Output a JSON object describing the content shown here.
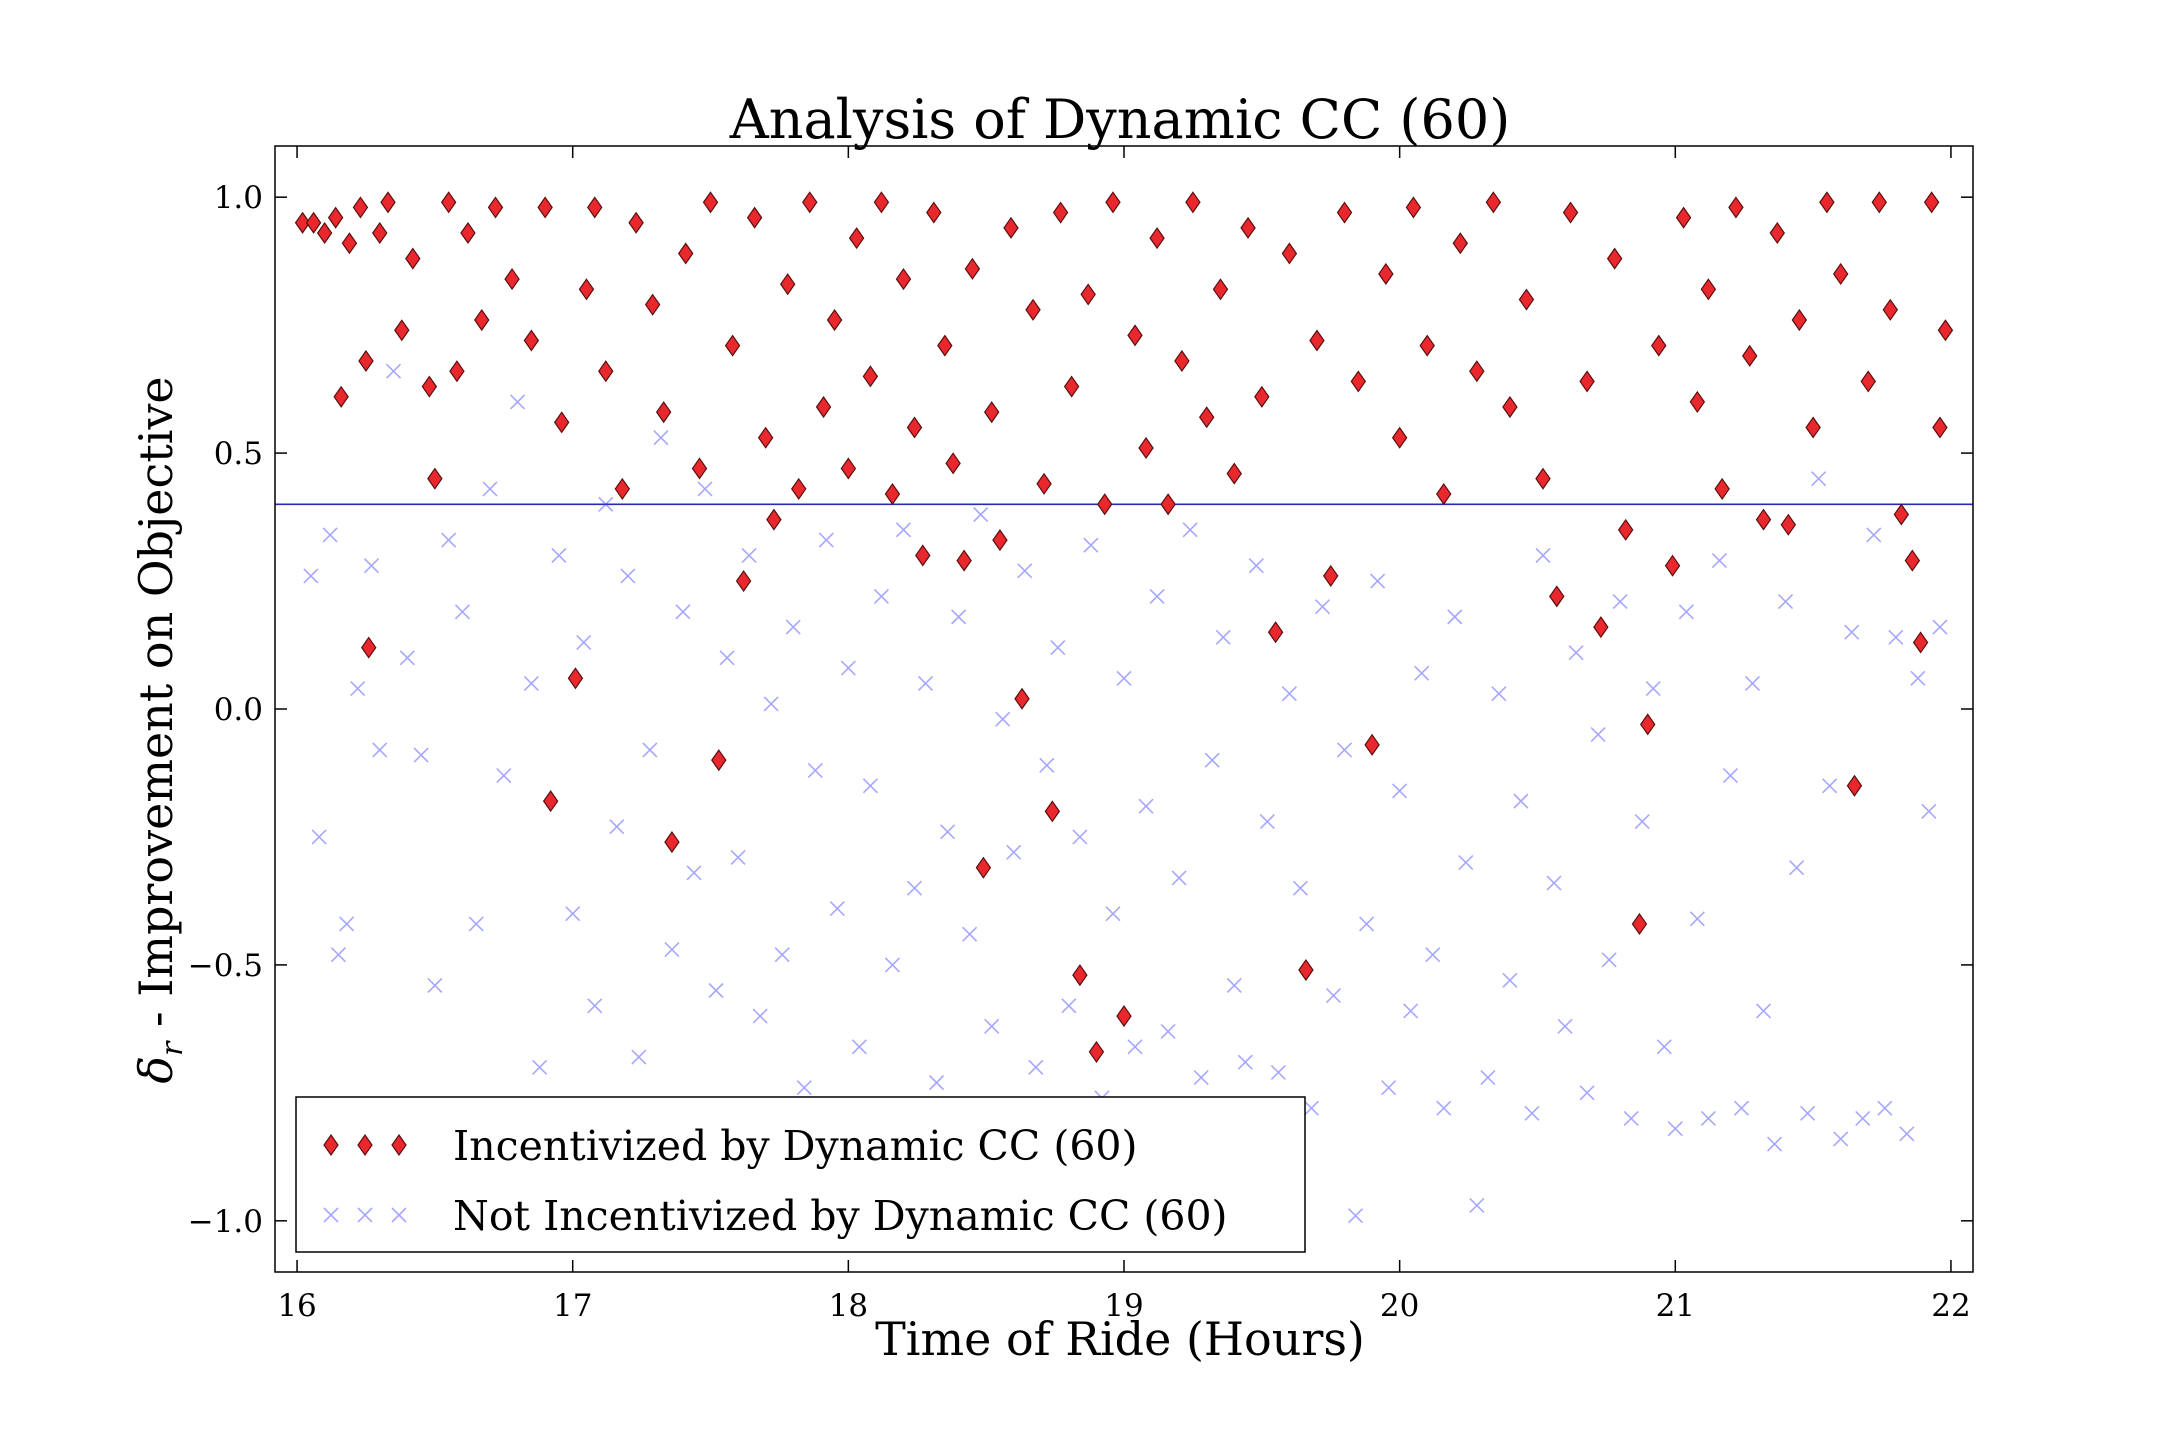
{
  "chart_data": {
    "type": "scatter",
    "title": "Analysis of Dynamic CC (60)",
    "xlabel": "Time of Ride (Hours)",
    "ylabel_symbol": "δ",
    "ylabel_subscript": "r",
    "ylabel_text": " - Improvement on Objective",
    "xlim": [
      15.92,
      22.08
    ],
    "ylim": [
      -1.1,
      1.1
    ],
    "x_ticks": [
      16,
      17,
      18,
      19,
      20,
      21,
      22
    ],
    "x_tick_labels": [
      "16",
      "17",
      "18",
      "19",
      "20",
      "21",
      "22"
    ],
    "y_ticks": [
      1.0,
      0.5,
      0.0,
      -0.5,
      -1.0
    ],
    "y_tick_labels": [
      "1.0",
      "0.5",
      "0.0",
      "−0.5",
      "−1.0"
    ],
    "threshold_line": {
      "y": 0.4,
      "color": "#2a2ab8"
    },
    "legend": {
      "position": "lower-left"
    },
    "series": [
      {
        "name": "Incentivized by Dynamic CC (60)",
        "marker": "diamond",
        "color": "#e8282d",
        "points": [
          [
            16.02,
            0.95
          ],
          [
            16.06,
            0.95
          ],
          [
            16.1,
            0.93
          ],
          [
            16.14,
            0.96
          ],
          [
            16.16,
            0.61
          ],
          [
            16.19,
            0.91
          ],
          [
            16.23,
            0.98
          ],
          [
            16.25,
            0.68
          ],
          [
            16.26,
            0.12
          ],
          [
            16.3,
            0.93
          ],
          [
            16.33,
            0.99
          ],
          [
            16.38,
            0.74
          ],
          [
            16.42,
            0.88
          ],
          [
            16.48,
            0.63
          ],
          [
            16.5,
            0.45
          ],
          [
            16.55,
            0.99
          ],
          [
            16.58,
            0.66
          ],
          [
            16.62,
            0.93
          ],
          [
            16.67,
            0.76
          ],
          [
            16.72,
            0.98
          ],
          [
            16.78,
            0.84
          ],
          [
            16.85,
            0.72
          ],
          [
            16.9,
            0.98
          ],
          [
            16.92,
            -0.18
          ],
          [
            16.96,
            0.56
          ],
          [
            17.01,
            0.06
          ],
          [
            17.05,
            0.82
          ],
          [
            17.08,
            0.98
          ],
          [
            17.12,
            0.66
          ],
          [
            17.18,
            0.43
          ],
          [
            17.23,
            0.95
          ],
          [
            17.29,
            0.79
          ],
          [
            17.33,
            0.58
          ],
          [
            17.36,
            -0.26
          ],
          [
            17.41,
            0.89
          ],
          [
            17.46,
            0.47
          ],
          [
            17.5,
            0.99
          ],
          [
            17.53,
            -0.1
          ],
          [
            17.58,
            0.71
          ],
          [
            17.62,
            0.25
          ],
          [
            17.66,
            0.96
          ],
          [
            17.7,
            0.53
          ],
          [
            17.73,
            0.37
          ],
          [
            17.78,
            0.83
          ],
          [
            17.82,
            0.43
          ],
          [
            17.86,
            0.99
          ],
          [
            17.91,
            0.59
          ],
          [
            17.95,
            0.76
          ],
          [
            18.0,
            0.47
          ],
          [
            18.03,
            0.92
          ],
          [
            18.08,
            0.65
          ],
          [
            18.12,
            0.99
          ],
          [
            18.16,
            0.42
          ],
          [
            18.2,
            0.84
          ],
          [
            18.24,
            0.55
          ],
          [
            18.27,
            0.3
          ],
          [
            18.31,
            0.97
          ],
          [
            18.35,
            0.71
          ],
          [
            18.38,
            0.48
          ],
          [
            18.42,
            0.29
          ],
          [
            18.45,
            0.86
          ],
          [
            18.49,
            -0.31
          ],
          [
            18.52,
            0.58
          ],
          [
            18.55,
            0.33
          ],
          [
            18.59,
            0.94
          ],
          [
            18.63,
            0.02
          ],
          [
            18.67,
            0.78
          ],
          [
            18.71,
            0.44
          ],
          [
            18.74,
            -0.2
          ],
          [
            18.77,
            0.97
          ],
          [
            18.81,
            0.63
          ],
          [
            18.84,
            -0.52
          ],
          [
            18.87,
            0.81
          ],
          [
            18.9,
            -0.67
          ],
          [
            18.93,
            0.4
          ],
          [
            18.96,
            0.99
          ],
          [
            19.0,
            -0.6
          ],
          [
            19.04,
            0.73
          ],
          [
            19.08,
            0.51
          ],
          [
            19.12,
            0.92
          ],
          [
            19.16,
            0.4
          ],
          [
            19.21,
            0.68
          ],
          [
            19.25,
            0.99
          ],
          [
            19.3,
            0.57
          ],
          [
            19.35,
            0.82
          ],
          [
            19.4,
            0.46
          ],
          [
            19.45,
            0.94
          ],
          [
            19.5,
            0.61
          ],
          [
            19.55,
            0.15
          ],
          [
            19.6,
            0.89
          ],
          [
            19.66,
            -0.51
          ],
          [
            19.7,
            0.72
          ],
          [
            19.75,
            0.26
          ],
          [
            19.8,
            0.97
          ],
          [
            19.85,
            0.64
          ],
          [
            19.9,
            -0.07
          ],
          [
            19.95,
            0.85
          ],
          [
            20.0,
            0.53
          ],
          [
            20.05,
            0.98
          ],
          [
            20.1,
            0.71
          ],
          [
            20.16,
            0.42
          ],
          [
            20.22,
            0.91
          ],
          [
            20.28,
            0.66
          ],
          [
            20.34,
            0.99
          ],
          [
            20.4,
            0.59
          ],
          [
            20.46,
            0.8
          ],
          [
            20.52,
            0.45
          ],
          [
            20.57,
            0.22
          ],
          [
            20.62,
            0.97
          ],
          [
            20.68,
            0.64
          ],
          [
            20.73,
            0.16
          ],
          [
            20.78,
            0.88
          ],
          [
            20.82,
            0.35
          ],
          [
            20.87,
            -0.42
          ],
          [
            20.9,
            -0.03
          ],
          [
            20.94,
            0.71
          ],
          [
            20.99,
            0.28
          ],
          [
            21.03,
            0.96
          ],
          [
            21.08,
            0.6
          ],
          [
            21.12,
            0.82
          ],
          [
            21.17,
            0.43
          ],
          [
            21.22,
            0.98
          ],
          [
            21.27,
            0.69
          ],
          [
            21.32,
            0.37
          ],
          [
            21.37,
            0.93
          ],
          [
            21.41,
            0.36
          ],
          [
            21.45,
            0.76
          ],
          [
            21.5,
            0.55
          ],
          [
            21.55,
            0.99
          ],
          [
            21.6,
            0.85
          ],
          [
            21.65,
            -0.15
          ],
          [
            21.7,
            0.64
          ],
          [
            21.74,
            0.99
          ],
          [
            21.78,
            0.78
          ],
          [
            21.82,
            0.38
          ],
          [
            21.86,
            0.29
          ],
          [
            21.89,
            0.13
          ],
          [
            21.93,
            0.99
          ],
          [
            21.96,
            0.55
          ],
          [
            21.98,
            0.74
          ]
        ]
      },
      {
        "name": "Not Incentivized by Dynamic CC (60)",
        "marker": "x",
        "color": "#3b3bff",
        "points": [
          [
            16.05,
            0.26
          ],
          [
            16.08,
            -0.25
          ],
          [
            16.12,
            0.34
          ],
          [
            16.15,
            -0.48
          ],
          [
            16.18,
            -0.42
          ],
          [
            16.22,
            0.04
          ],
          [
            16.27,
            0.28
          ],
          [
            16.3,
            -0.08
          ],
          [
            16.35,
            0.66
          ],
          [
            16.4,
            0.1
          ],
          [
            16.45,
            -0.09
          ],
          [
            16.5,
            -0.54
          ],
          [
            16.55,
            0.33
          ],
          [
            16.6,
            0.19
          ],
          [
            16.65,
            -0.42
          ],
          [
            16.7,
            0.43
          ],
          [
            16.75,
            -0.13
          ],
          [
            16.8,
            0.6
          ],
          [
            16.85,
            0.05
          ],
          [
            16.88,
            -0.7
          ],
          [
            16.95,
            0.3
          ],
          [
            17.0,
            -0.4
          ],
          [
            17.04,
            0.13
          ],
          [
            17.08,
            -0.58
          ],
          [
            17.12,
            0.4
          ],
          [
            17.16,
            -0.23
          ],
          [
            17.2,
            0.26
          ],
          [
            17.24,
            -0.68
          ],
          [
            17.28,
            -0.08
          ],
          [
            17.32,
            0.53
          ],
          [
            17.36,
            -0.47
          ],
          [
            17.4,
            0.19
          ],
          [
            17.44,
            -0.32
          ],
          [
            17.48,
            0.43
          ],
          [
            17.52,
            -0.55
          ],
          [
            17.56,
            0.1
          ],
          [
            17.6,
            -0.29
          ],
          [
            17.64,
            0.3
          ],
          [
            17.68,
            -0.6
          ],
          [
            17.72,
            0.01
          ],
          [
            17.76,
            -0.48
          ],
          [
            17.8,
            0.16
          ],
          [
            17.84,
            -0.74
          ],
          [
            17.88,
            -0.12
          ],
          [
            17.92,
            0.33
          ],
          [
            17.96,
            -0.39
          ],
          [
            18.0,
            0.08
          ],
          [
            18.04,
            -0.66
          ],
          [
            18.08,
            -0.15
          ],
          [
            18.12,
            0.22
          ],
          [
            18.16,
            -0.5
          ],
          [
            18.2,
            0.35
          ],
          [
            18.24,
            -0.35
          ],
          [
            18.28,
            0.05
          ],
          [
            18.32,
            -0.73
          ],
          [
            18.36,
            -0.24
          ],
          [
            18.4,
            0.18
          ],
          [
            18.44,
            -0.44
          ],
          [
            18.48,
            0.38
          ],
          [
            18.52,
            -0.62
          ],
          [
            18.56,
            -0.02
          ],
          [
            18.6,
            -0.28
          ],
          [
            18.64,
            0.27
          ],
          [
            18.68,
            -0.7
          ],
          [
            18.72,
            -0.11
          ],
          [
            18.76,
            0.12
          ],
          [
            18.8,
            -0.58
          ],
          [
            18.84,
            -0.25
          ],
          [
            18.88,
            0.32
          ],
          [
            18.92,
            -0.76
          ],
          [
            18.96,
            -0.4
          ],
          [
            19.0,
            0.06
          ],
          [
            19.04,
            -0.66
          ],
          [
            19.08,
            -0.19
          ],
          [
            19.12,
            0.22
          ],
          [
            19.16,
            -0.63
          ],
          [
            19.2,
            -0.33
          ],
          [
            19.24,
            0.35
          ],
          [
            19.28,
            -0.72
          ],
          [
            19.32,
            -0.1
          ],
          [
            19.36,
            0.14
          ],
          [
            19.4,
            -0.54
          ],
          [
            19.44,
            -0.69
          ],
          [
            19.48,
            0.28
          ],
          [
            19.52,
            -0.22
          ],
          [
            19.56,
            -0.71
          ],
          [
            19.6,
            0.03
          ],
          [
            19.64,
            -0.35
          ],
          [
            19.68,
            -0.78
          ],
          [
            19.72,
            0.2
          ],
          [
            19.76,
            -0.56
          ],
          [
            19.8,
            -0.08
          ],
          [
            19.84,
            -0.99
          ],
          [
            19.88,
            -0.42
          ],
          [
            19.92,
            0.25
          ],
          [
            19.96,
            -0.74
          ],
          [
            20.0,
            -0.16
          ],
          [
            20.04,
            -0.59
          ],
          [
            20.08,
            0.07
          ],
          [
            20.12,
            -0.48
          ],
          [
            20.16,
            -0.78
          ],
          [
            20.2,
            0.18
          ],
          [
            20.24,
            -0.3
          ],
          [
            20.28,
            -0.97
          ],
          [
            20.32,
            -0.72
          ],
          [
            20.36,
            0.03
          ],
          [
            20.4,
            -0.53
          ],
          [
            20.44,
            -0.18
          ],
          [
            20.48,
            -0.79
          ],
          [
            20.52,
            0.3
          ],
          [
            20.56,
            -0.34
          ],
          [
            20.6,
            -0.62
          ],
          [
            20.64,
            0.11
          ],
          [
            20.68,
            -0.75
          ],
          [
            20.72,
            -0.05
          ],
          [
            20.76,
            -0.49
          ],
          [
            20.8,
            0.21
          ],
          [
            20.84,
            -0.8
          ],
          [
            20.88,
            -0.22
          ],
          [
            20.92,
            0.04
          ],
          [
            20.96,
            -0.66
          ],
          [
            21.0,
            -0.82
          ],
          [
            21.04,
            0.19
          ],
          [
            21.08,
            -0.41
          ],
          [
            21.12,
            -0.8
          ],
          [
            21.16,
            0.29
          ],
          [
            21.2,
            -0.13
          ],
          [
            21.24,
            -0.78
          ],
          [
            21.28,
            0.05
          ],
          [
            21.32,
            -0.59
          ],
          [
            21.36,
            -0.85
          ],
          [
            21.4,
            0.21
          ],
          [
            21.44,
            -0.31
          ],
          [
            21.48,
            -0.79
          ],
          [
            21.52,
            0.45
          ],
          [
            21.56,
            -0.15
          ],
          [
            21.6,
            -0.84
          ],
          [
            21.64,
            0.15
          ],
          [
            21.68,
            -0.8
          ],
          [
            21.72,
            0.34
          ],
          [
            21.76,
            -0.78
          ],
          [
            21.8,
            0.14
          ],
          [
            21.84,
            -0.83
          ],
          [
            21.88,
            0.06
          ],
          [
            21.92,
            -0.2
          ],
          [
            21.96,
            0.16
          ]
        ]
      }
    ]
  }
}
